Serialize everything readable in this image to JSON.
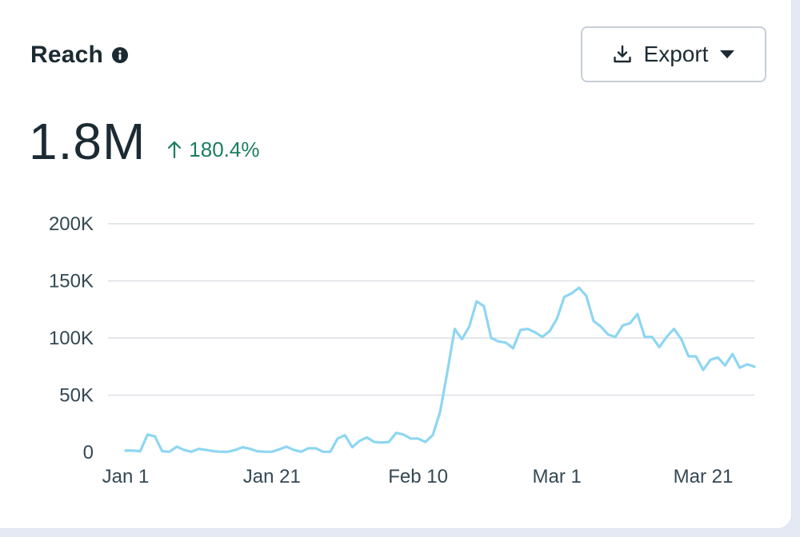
{
  "header": {
    "title": "Reach",
    "export_label": "Export"
  },
  "metric": {
    "value": "1.8M",
    "change": "180.4%",
    "change_direction": "up"
  },
  "colors": {
    "line": "#8ed6f2",
    "positive": "#1a7f5a",
    "text": "#1c2b33",
    "grid": "#dcdfe4"
  },
  "icons": {
    "info": "info-icon",
    "export": "download-icon",
    "dropdown": "caret-down-icon",
    "change": "arrow-up-icon"
  },
  "chart_data": {
    "type": "line",
    "title": "",
    "xlabel": "",
    "ylabel": "",
    "ylim": [
      0,
      200000
    ],
    "yticks": [
      0,
      50000,
      100000,
      150000,
      200000
    ],
    "ytick_labels": [
      "0",
      "50K",
      "100K",
      "150K",
      "200K"
    ],
    "xtick_labels": [
      "Jan 1",
      "Jan 21",
      "Feb 10",
      "Mar 1",
      "Mar 21"
    ],
    "xtick_indices": [
      0,
      20,
      40,
      59,
      79
    ],
    "grid": true,
    "series": [
      {
        "values": [
          1500,
          1500,
          1000,
          15500,
          14000,
          1000,
          500,
          5000,
          2000,
          500,
          3000,
          2000,
          1000,
          500,
          500,
          2000,
          4500,
          3000,
          1000,
          500,
          500,
          2500,
          5000,
          2000,
          500,
          3500,
          3500,
          500,
          500,
          12000,
          15000,
          4500,
          10000,
          13000,
          9000,
          8500,
          9000,
          17000,
          15500,
          12000,
          12000,
          9000,
          15000,
          35000,
          70000,
          108000,
          99000,
          110000,
          132000,
          128000,
          100000,
          97000,
          96000,
          91000,
          107000,
          108000,
          105000,
          101000,
          106000,
          117000,
          136000,
          139000,
          144000,
          137000,
          115000,
          110000,
          103000,
          101000,
          111000,
          113000,
          121000,
          101000,
          101000,
          92000,
          101000,
          108000,
          99000,
          84000,
          84000,
          72000,
          81000,
          83000,
          76000,
          86000,
          74000,
          77000,
          75000
        ]
      }
    ]
  }
}
